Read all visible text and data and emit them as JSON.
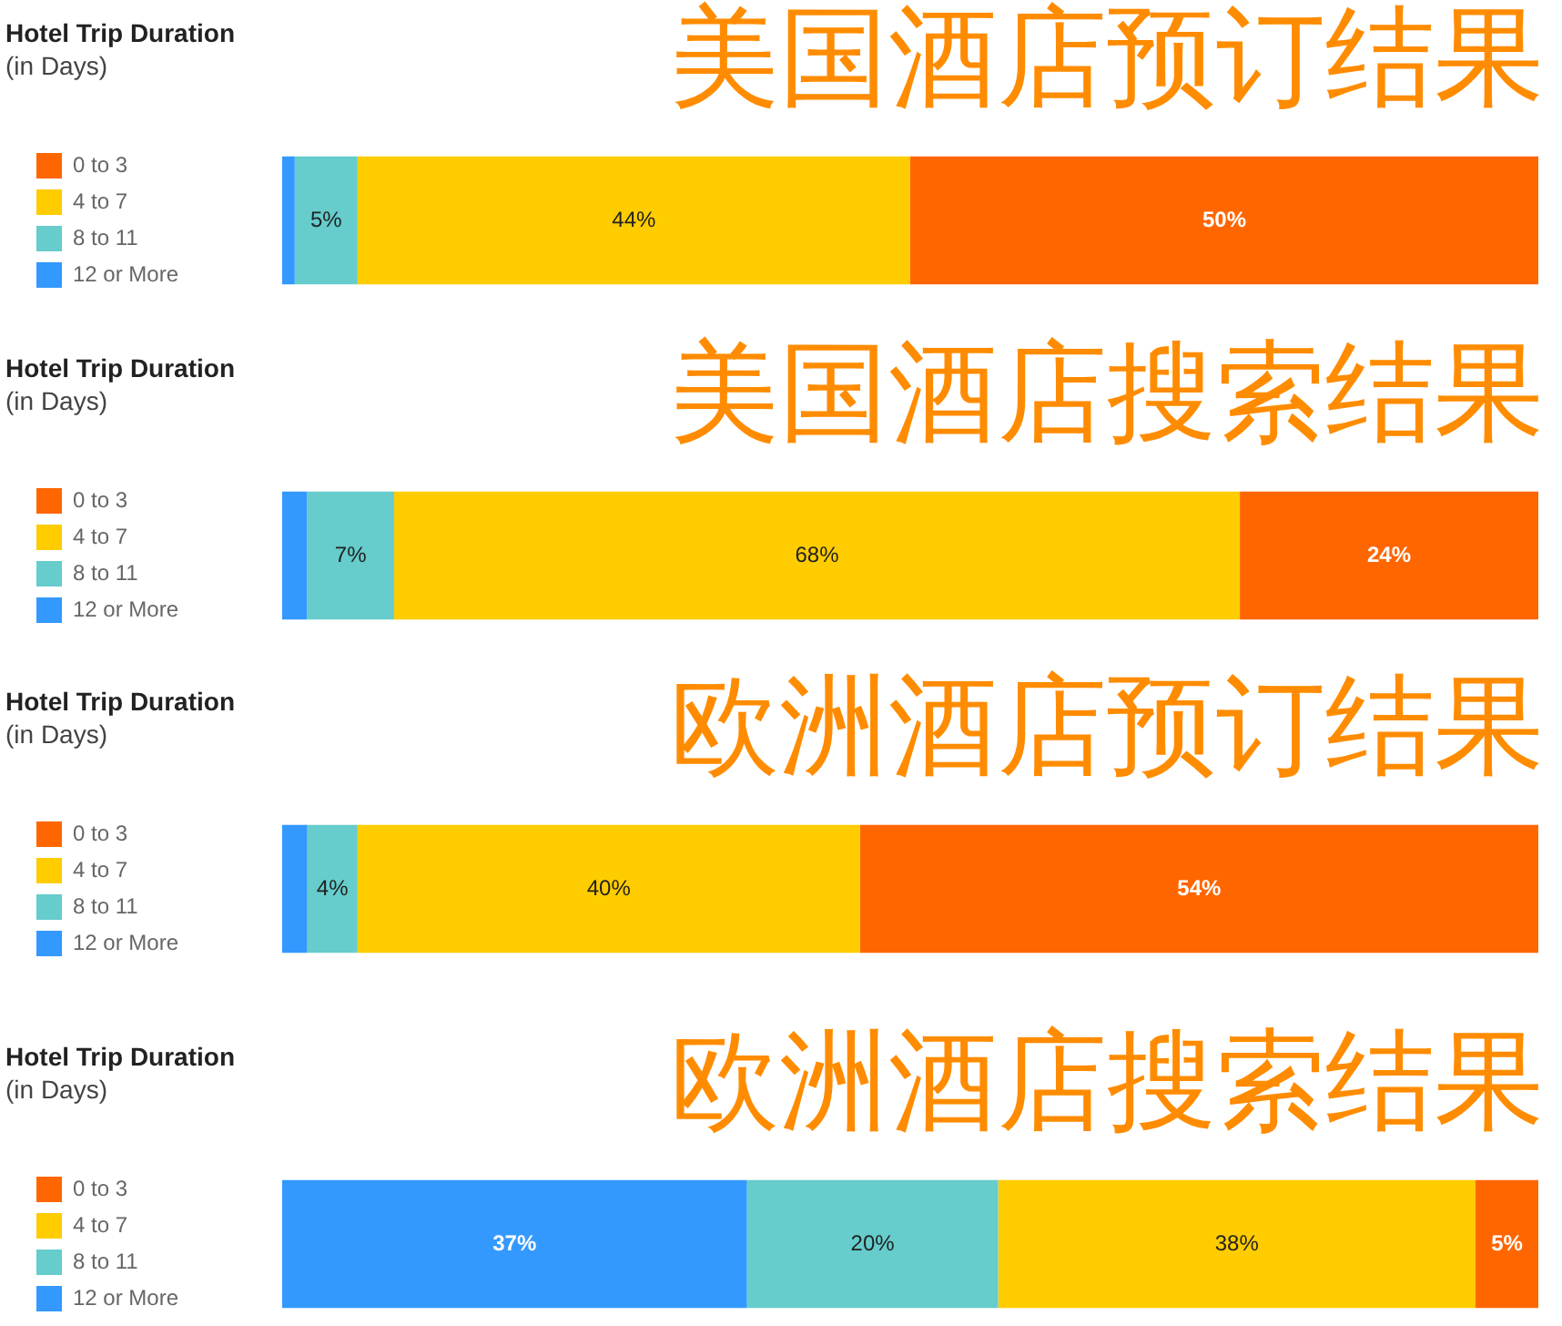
{
  "chart_data": [
    {
      "type": "bar",
      "orientation": "horizontal",
      "stacked": true,
      "title": "Hotel Trip Duration\n(in Days)",
      "annotations": [
        "美国酒店预订结果"
      ],
      "categories": [
        null
      ],
      "legend": "left",
      "series": [
        {
          "name": "12 or More",
          "color": "#3399ff",
          "values": [
            1
          ],
          "value_labels": [
            null
          ]
        },
        {
          "name": "8 to 11",
          "color": "#66cccc",
          "values": [
            5
          ],
          "value_labels": [
            "5%"
          ]
        },
        {
          "name": "4 to 7",
          "color": "#ffcc00",
          "values": [
            44
          ],
          "value_labels": [
            "44%"
          ]
        },
        {
          "name": "0 to 3",
          "color": "#ff6600",
          "values": [
            50
          ],
          "value_labels": [
            "50%"
          ]
        }
      ]
    },
    {
      "type": "bar",
      "orientation": "horizontal",
      "stacked": true,
      "title": "Hotel Trip Duration\n(in Days)",
      "annotations": [
        "美国酒店搜索结果"
      ],
      "categories": [
        null
      ],
      "legend": "left",
      "series": [
        {
          "name": "12 or More",
          "color": "#3399ff",
          "values": [
            2
          ],
          "value_labels": [
            null
          ]
        },
        {
          "name": "8 to 11",
          "color": "#66cccc",
          "values": [
            7
          ],
          "value_labels": [
            "7%"
          ]
        },
        {
          "name": "4 to 7",
          "color": "#ffcc00",
          "values": [
            68
          ],
          "value_labels": [
            "68%"
          ]
        },
        {
          "name": "0 to 3",
          "color": "#ff6600",
          "values": [
            24
          ],
          "value_labels": [
            "24%"
          ]
        }
      ]
    },
    {
      "type": "bar",
      "orientation": "horizontal",
      "stacked": true,
      "title": "Hotel Trip Duration\n(in Days)",
      "annotations": [
        "欧洲酒店预订结果"
      ],
      "categories": [
        null
      ],
      "legend": "left",
      "series": [
        {
          "name": "12 or More",
          "color": "#3399ff",
          "values": [
            2
          ],
          "value_labels": [
            null
          ]
        },
        {
          "name": "8 to 11",
          "color": "#66cccc",
          "values": [
            4
          ],
          "value_labels": [
            "4%"
          ]
        },
        {
          "name": "4 to 7",
          "color": "#ffcc00",
          "values": [
            40
          ],
          "value_labels": [
            "40%"
          ]
        },
        {
          "name": "0 to 3",
          "color": "#ff6600",
          "values": [
            54
          ],
          "value_labels": [
            "54%"
          ]
        }
      ]
    },
    {
      "type": "bar",
      "orientation": "horizontal",
      "stacked": true,
      "title": "Hotel Trip Duration\n(in Days)",
      "annotations": [
        "欧洲酒店搜索结果"
      ],
      "categories": [
        null
      ],
      "legend": "left",
      "series": [
        {
          "name": "12 or More",
          "color": "#3399ff",
          "values": [
            37
          ],
          "value_labels": [
            "37%"
          ]
        },
        {
          "name": "8 to 11",
          "color": "#66cccc",
          "values": [
            20
          ],
          "value_labels": [
            "20%"
          ]
        },
        {
          "name": "4 to 7",
          "color": "#ffcc00",
          "values": [
            38
          ],
          "value_labels": [
            "38%"
          ]
        },
        {
          "name": "0 to 3",
          "color": "#ff6600",
          "values": [
            5
          ],
          "value_labels": [
            "5%"
          ]
        }
      ]
    }
  ]
}
